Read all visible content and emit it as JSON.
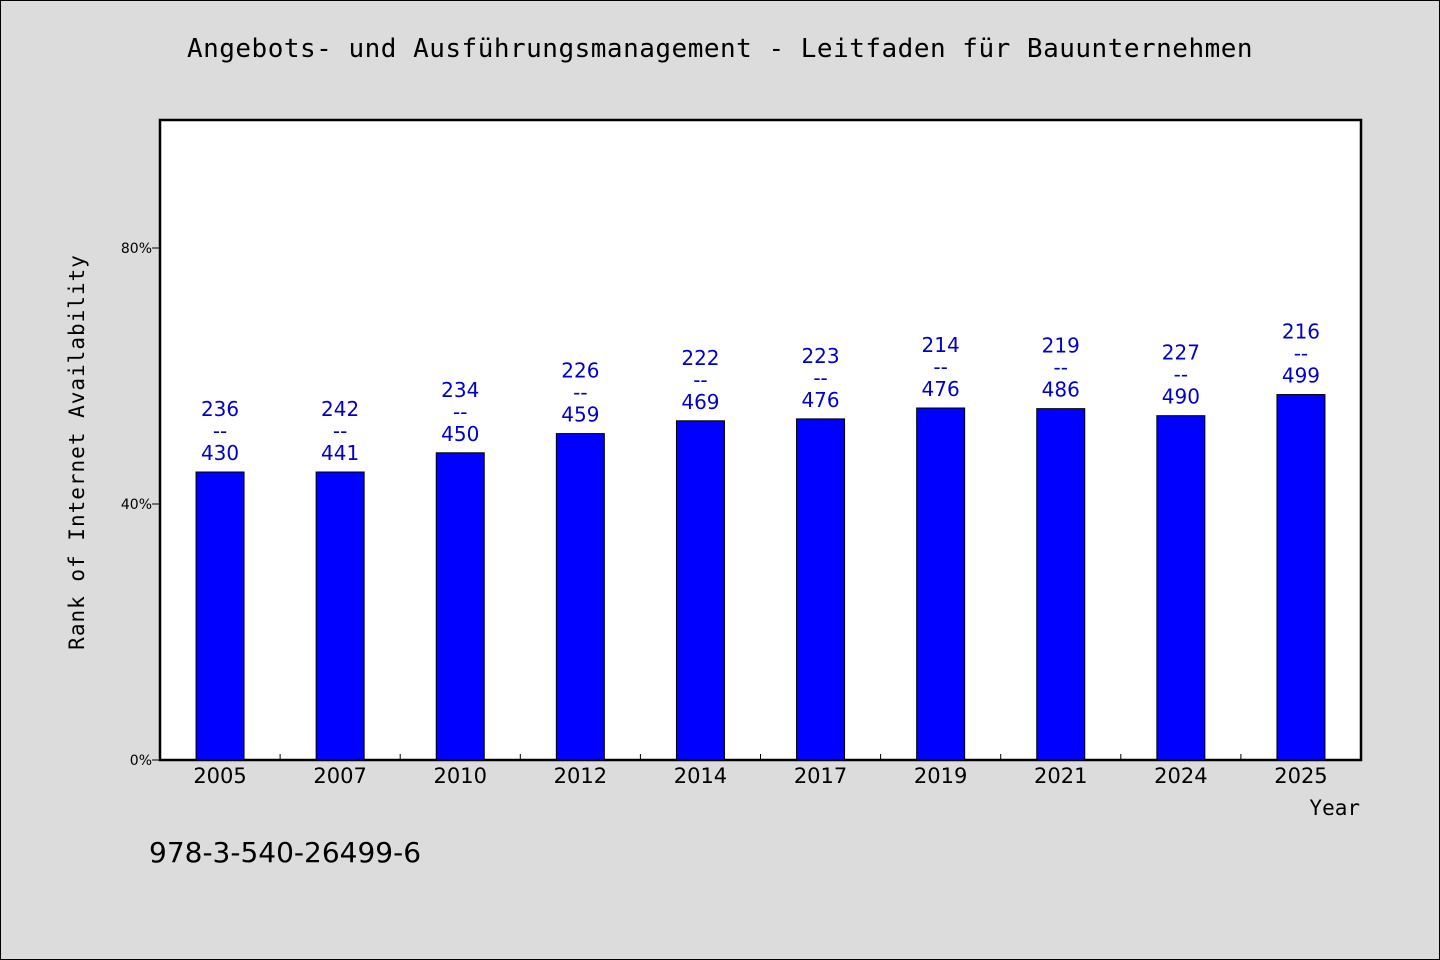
{
  "colors": {
    "bar": "#0000ff",
    "label": "#0000cc",
    "plot_background": "#ffffff",
    "page_background": "#dcdcdc"
  },
  "footer": {
    "id_text": "978-3-540-26499-6"
  },
  "chart_data": {
    "type": "bar",
    "title": "Angebots- und Ausführungsmanagement - Leitfaden für Bauunternehmen",
    "xlabel": "Year",
    "ylabel": "Rank of Internet Availability",
    "categories": [
      "2005",
      "2007",
      "2010",
      "2012",
      "2014",
      "2017",
      "2019",
      "2021",
      "2024",
      "2025"
    ],
    "values": [
      45,
      45,
      48,
      51,
      53,
      53.3,
      55,
      54.9,
      53.8,
      57.1
    ],
    "ylim": [
      0,
      100
    ],
    "yticks": [
      0,
      40,
      80
    ],
    "ytick_labels": [
      "0%",
      "40%",
      "80%"
    ],
    "data_labels": [
      {
        "top": "236",
        "sep": "--",
        "bottom": "430"
      },
      {
        "top": "242",
        "sep": "--",
        "bottom": "441"
      },
      {
        "top": "234",
        "sep": "--",
        "bottom": "450"
      },
      {
        "top": "226",
        "sep": "--",
        "bottom": "459"
      },
      {
        "top": "222",
        "sep": "--",
        "bottom": "469"
      },
      {
        "top": "223",
        "sep": "--",
        "bottom": "476"
      },
      {
        "top": "214",
        "sep": "--",
        "bottom": "476"
      },
      {
        "top": "219",
        "sep": "--",
        "bottom": "486"
      },
      {
        "top": "227",
        "sep": "--",
        "bottom": "490"
      },
      {
        "top": "216",
        "sep": "--",
        "bottom": "499"
      }
    ],
    "grid": false,
    "legend": "none"
  }
}
